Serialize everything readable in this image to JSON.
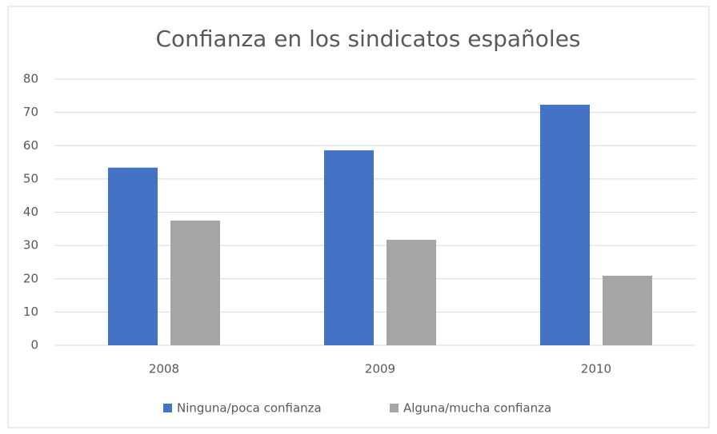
{
  "chart_data": {
    "type": "bar",
    "title": "Confianza en los sindicatos españoles",
    "categories": [
      "2008",
      "2009",
      "2010"
    ],
    "series": [
      {
        "name": "Ninguna/poca confianza",
        "color": "#4472c4",
        "values": [
          53.4,
          58.6,
          72.3
        ]
      },
      {
        "name": "Alguna/mucha confianza",
        "color": "#a5a5a5",
        "values": [
          37.5,
          31.7,
          20.9
        ]
      }
    ],
    "ylim": [
      0,
      80
    ],
    "yticks": [
      0,
      10,
      20,
      30,
      40,
      50,
      60,
      70,
      80
    ],
    "grid": true,
    "legend": "bottom"
  }
}
